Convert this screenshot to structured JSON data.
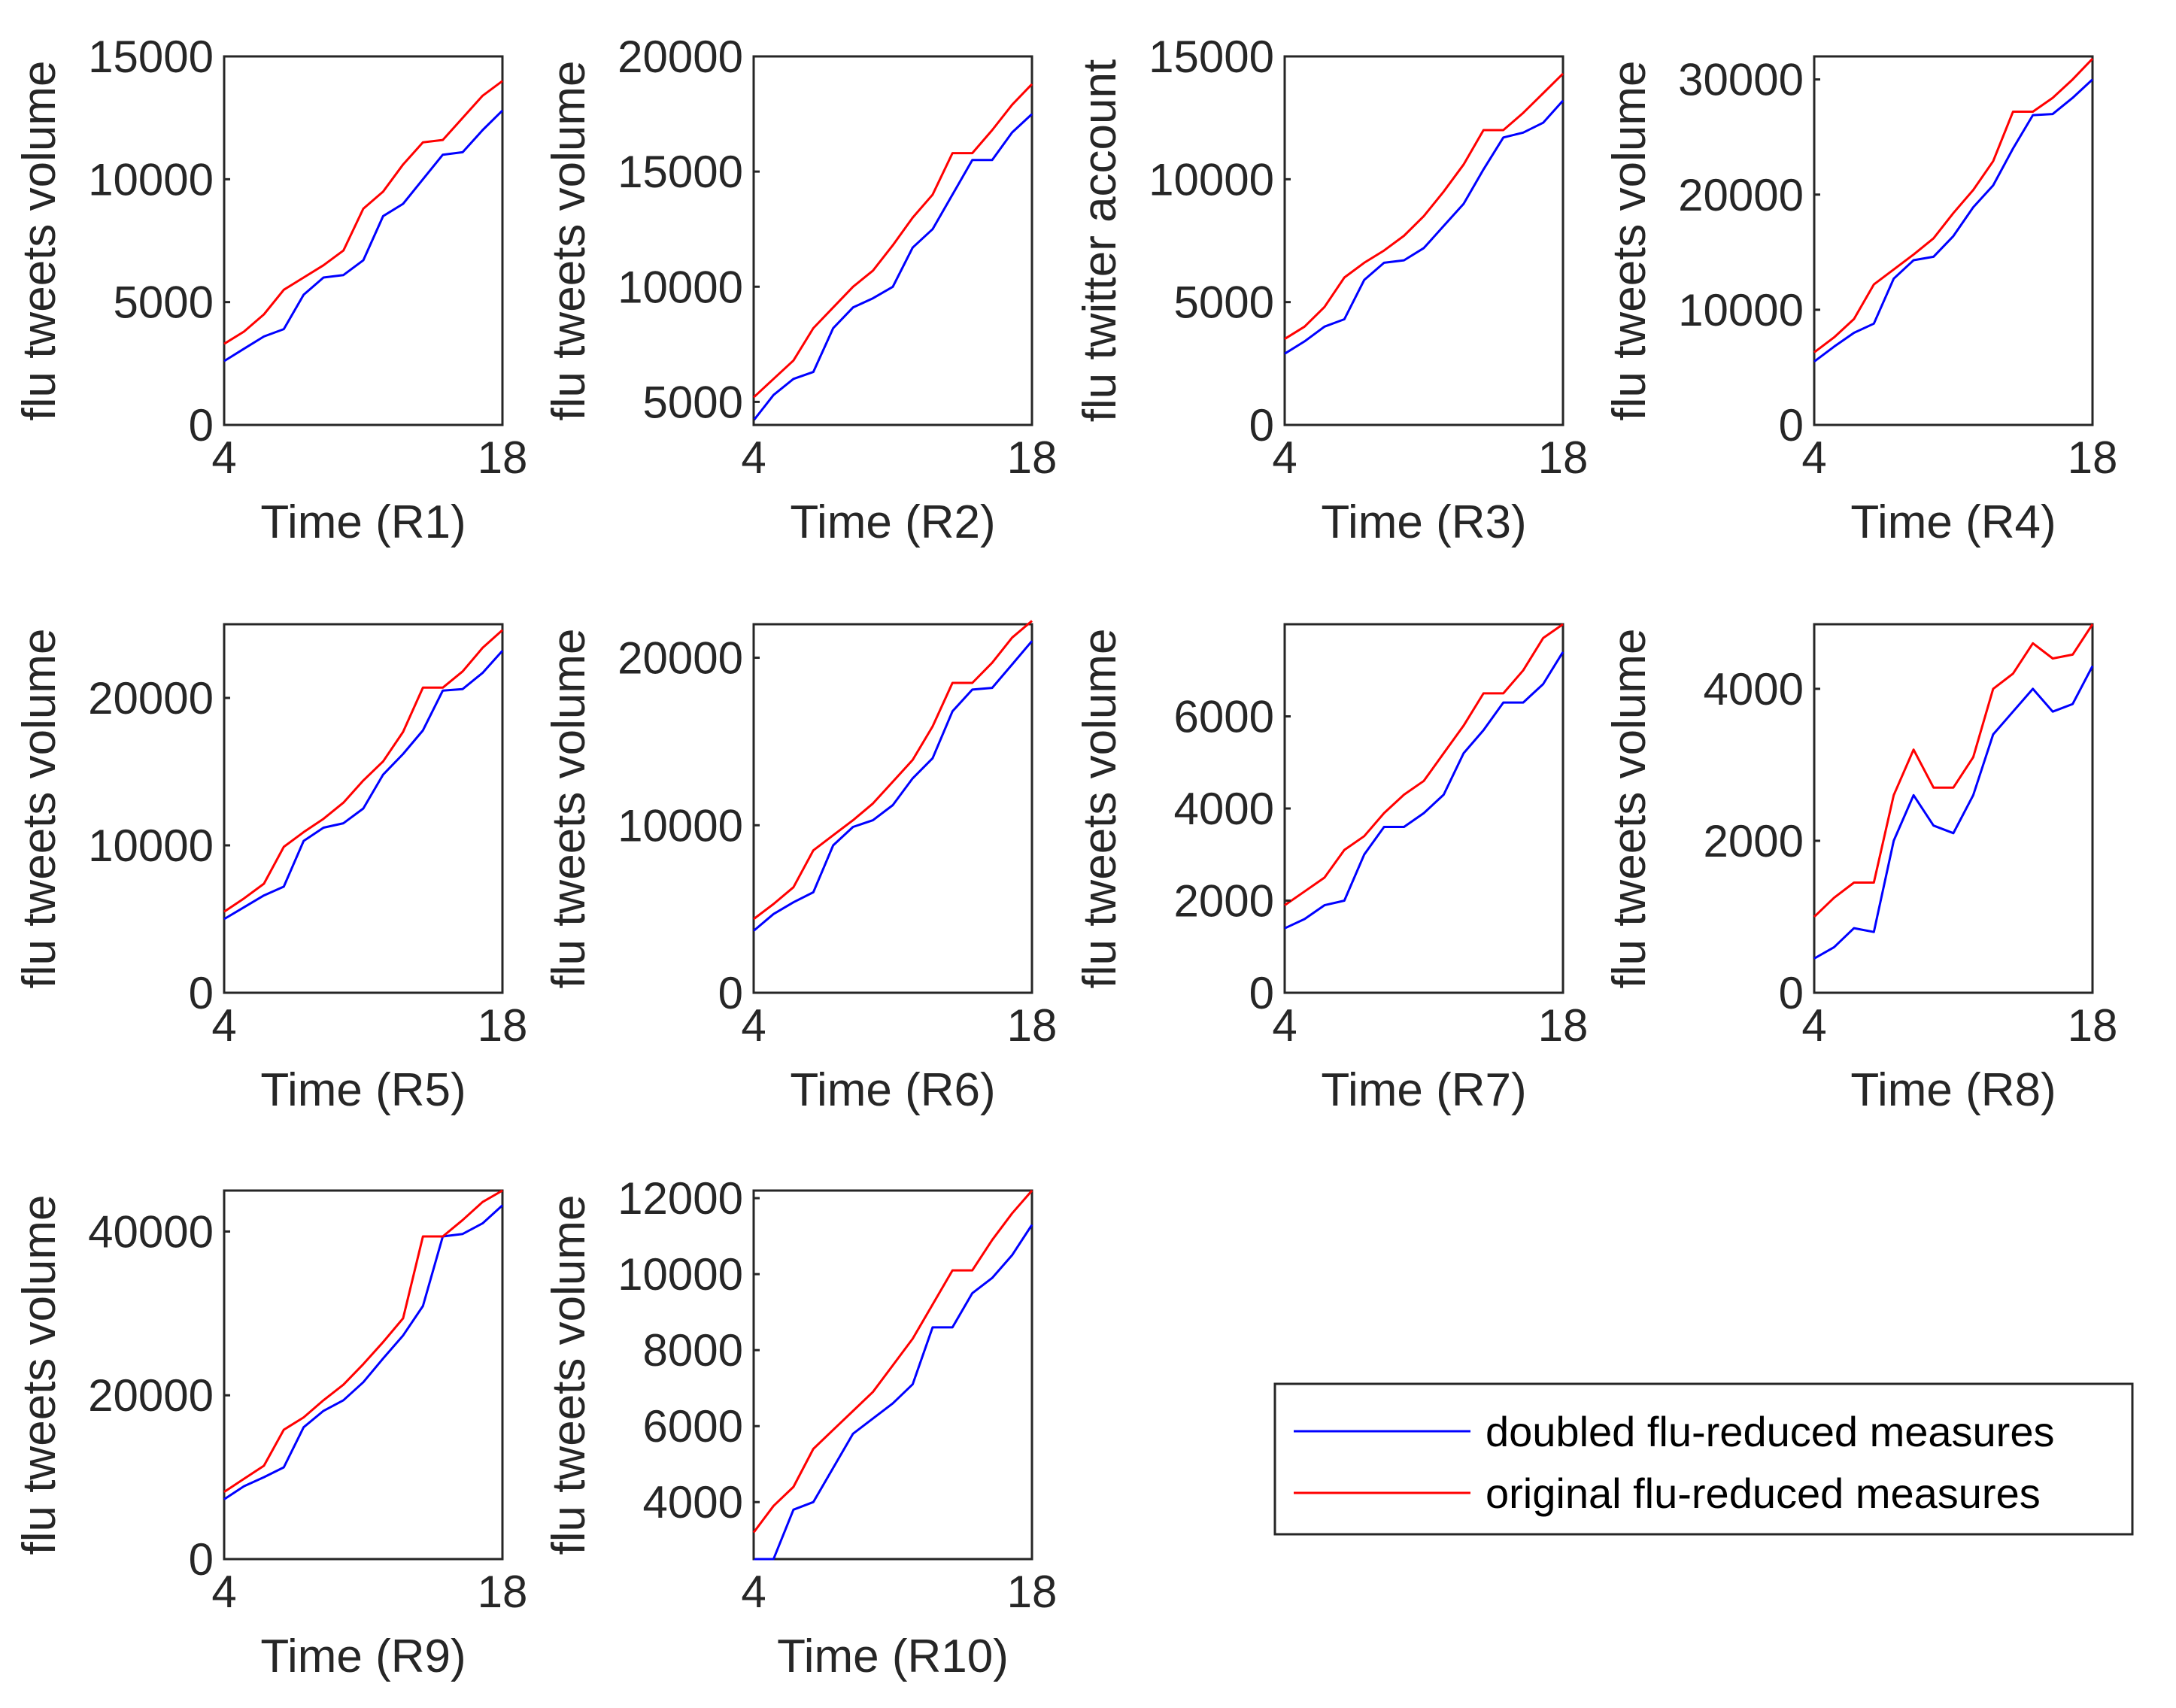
{
  "chart_data": [
    {
      "type": "line",
      "panel": "R1",
      "xlabel": "Time (R1)",
      "ylabel": "flu tweets volume",
      "xlim": [
        4,
        18
      ],
      "ylim": [
        0,
        15000
      ],
      "xticks": [
        "4",
        "18"
      ],
      "yticks": [
        "0",
        "5000",
        "10000",
        "15000"
      ],
      "x": [
        4,
        5,
        6,
        7,
        8,
        9,
        10,
        11,
        12,
        13,
        14,
        15,
        16,
        17,
        18
      ],
      "series": [
        {
          "name": "doubled flu-reduced measures",
          "color": "#0000ff",
          "values": [
            2600,
            3100,
            3600,
            3900,
            5300,
            6000,
            6100,
            6700,
            8500,
            9000,
            10000,
            11000,
            11100,
            12000,
            12800
          ]
        },
        {
          "name": "original flu-reduced measures",
          "color": "#ff0000",
          "values": [
            3300,
            3800,
            4500,
            5500,
            6000,
            6500,
            7100,
            8800,
            9500,
            10600,
            11500,
            11600,
            12500,
            13400,
            14000
          ]
        }
      ]
    },
    {
      "type": "line",
      "panel": "R2",
      "xlabel": "Time (R2)",
      "ylabel": "flu tweets volume",
      "xlim": [
        4,
        18
      ],
      "ylim": [
        4000,
        20000
      ],
      "xticks": [
        "4",
        "18"
      ],
      "yticks": [
        "5000",
        "10000",
        "15000",
        "20000"
      ],
      "x": [
        4,
        5,
        6,
        7,
        8,
        9,
        10,
        11,
        12,
        13,
        14,
        15,
        16,
        17,
        18
      ],
      "series": [
        {
          "name": "doubled flu-reduced measures",
          "color": "#0000ff",
          "values": [
            4200,
            5300,
            6000,
            6300,
            8200,
            9100,
            9500,
            10000,
            11700,
            12500,
            14000,
            15500,
            15500,
            16700,
            17500
          ]
        },
        {
          "name": "original flu-reduced measures",
          "color": "#ff0000",
          "values": [
            5200,
            6000,
            6800,
            8200,
            9100,
            10000,
            10700,
            11800,
            13000,
            14000,
            15800,
            15800,
            16800,
            17900,
            18800
          ]
        }
      ]
    },
    {
      "type": "line",
      "panel": "R3",
      "xlabel": "Time (R3)",
      "ylabel": "flu twitter account",
      "xlim": [
        4,
        18
      ],
      "ylim": [
        0,
        15000
      ],
      "xticks": [
        "4",
        "18"
      ],
      "yticks": [
        "0",
        "5000",
        "10000",
        "15000"
      ],
      "x": [
        4,
        5,
        6,
        7,
        8,
        9,
        10,
        11,
        12,
        13,
        14,
        15,
        16,
        17,
        18
      ],
      "series": [
        {
          "name": "doubled flu-reduced measures",
          "color": "#0000ff",
          "values": [
            2900,
            3400,
            4000,
            4300,
            5900,
            6600,
            6700,
            7200,
            8100,
            9000,
            10400,
            11700,
            11900,
            12300,
            13200
          ]
        },
        {
          "name": "original flu-reduced measures",
          "color": "#ff0000",
          "values": [
            3500,
            4000,
            4800,
            6000,
            6600,
            7100,
            7700,
            8500,
            9500,
            10600,
            12000,
            12000,
            12700,
            13500,
            14300
          ]
        }
      ]
    },
    {
      "type": "line",
      "panel": "R4",
      "xlabel": "Time (R4)",
      "ylabel": "flu tweets volume",
      "xlim": [
        4,
        18
      ],
      "ylim": [
        0,
        32000
      ],
      "xticks": [
        "4",
        "18"
      ],
      "yticks": [
        "0",
        "10000",
        "20000",
        "30000"
      ],
      "x": [
        4,
        5,
        6,
        7,
        8,
        9,
        10,
        11,
        12,
        13,
        14,
        15,
        16,
        17,
        18
      ],
      "series": [
        {
          "name": "doubled flu-reduced measures",
          "color": "#0000ff",
          "values": [
            5500,
            6800,
            8000,
            8800,
            12700,
            14300,
            14600,
            16400,
            18900,
            20800,
            24000,
            26900,
            27000,
            28400,
            30000
          ]
        },
        {
          "name": "original flu-reduced measures",
          "color": "#ff0000",
          "values": [
            6300,
            7600,
            9200,
            12200,
            13500,
            14800,
            16200,
            18400,
            20400,
            22900,
            27200,
            27200,
            28400,
            30000,
            31800
          ]
        }
      ]
    },
    {
      "type": "line",
      "panel": "R5",
      "xlabel": "Time (R5)",
      "ylabel": "flu tweets volume",
      "xlim": [
        4,
        18
      ],
      "ylim": [
        0,
        25000
      ],
      "xticks": [
        "4",
        "18"
      ],
      "yticks": [
        "0",
        "10000",
        "20000"
      ],
      "x": [
        4,
        5,
        6,
        7,
        8,
        9,
        10,
        11,
        12,
        13,
        14,
        15,
        16,
        17,
        18
      ],
      "series": [
        {
          "name": "doubled flu-reduced measures",
          "color": "#0000ff",
          "values": [
            5000,
            5800,
            6600,
            7200,
            10300,
            11200,
            11500,
            12500,
            14800,
            16200,
            17800,
            20500,
            20600,
            21700,
            23200
          ]
        },
        {
          "name": "original flu-reduced measures",
          "color": "#ff0000",
          "values": [
            5500,
            6400,
            7400,
            9900,
            10900,
            11800,
            12900,
            14400,
            15700,
            17700,
            20700,
            20700,
            21800,
            23400,
            24600
          ]
        }
      ]
    },
    {
      "type": "line",
      "panel": "R6",
      "xlabel": "Time (R6)",
      "ylabel": "flu tweets volume",
      "xlim": [
        4,
        18
      ],
      "ylim": [
        0,
        22000
      ],
      "xticks": [
        "4",
        "18"
      ],
      "yticks": [
        "0",
        "10000",
        "20000"
      ],
      "x": [
        4,
        5,
        6,
        7,
        8,
        9,
        10,
        11,
        12,
        13,
        14,
        15,
        16,
        17,
        18
      ],
      "series": [
        {
          "name": "doubled flu-reduced measures",
          "color": "#0000ff",
          "values": [
            3700,
            4700,
            5400,
            6000,
            8800,
            9900,
            10300,
            11200,
            12800,
            14000,
            16800,
            18100,
            18200,
            19600,
            21000
          ]
        },
        {
          "name": "original flu-reduced measures",
          "color": "#ff0000",
          "values": [
            4400,
            5300,
            6300,
            8500,
            9400,
            10300,
            11300,
            12600,
            13900,
            15900,
            18500,
            18500,
            19700,
            21200,
            22200
          ]
        }
      ]
    },
    {
      "type": "line",
      "panel": "R7",
      "xlabel": "Time (R7)",
      "ylabel": "flu tweets volume",
      "xlim": [
        4,
        18
      ],
      "ylim": [
        0,
        8000
      ],
      "xticks": [
        "4",
        "18"
      ],
      "yticks": [
        "0",
        "2000",
        "4000",
        "6000"
      ],
      "x": [
        4,
        5,
        6,
        7,
        8,
        9,
        10,
        11,
        12,
        13,
        14,
        15,
        16,
        17,
        18
      ],
      "series": [
        {
          "name": "doubled flu-reduced measures",
          "color": "#0000ff",
          "values": [
            1400,
            1600,
            1900,
            2000,
            3000,
            3600,
            3600,
            3900,
            4300,
            5200,
            5700,
            6300,
            6300,
            6700,
            7400
          ]
        },
        {
          "name": "original flu-reduced measures",
          "color": "#ff0000",
          "values": [
            1900,
            2200,
            2500,
            3100,
            3400,
            3900,
            4300,
            4600,
            5200,
            5800,
            6500,
            6500,
            7000,
            7700,
            8000
          ]
        }
      ]
    },
    {
      "type": "line",
      "panel": "R8",
      "xlabel": "Time (R8)",
      "ylabel": "flu tweets volume",
      "xlim": [
        4,
        18
      ],
      "ylim": [
        0,
        4850
      ],
      "xticks": [
        "4",
        "18"
      ],
      "yticks": [
        "0",
        "2000",
        "4000"
      ],
      "x": [
        4,
        5,
        6,
        7,
        8,
        9,
        10,
        11,
        12,
        13,
        14,
        15,
        16,
        17,
        18
      ],
      "series": [
        {
          "name": "doubled flu-reduced measures",
          "color": "#0000ff",
          "values": [
            450,
            600,
            850,
            800,
            2000,
            2600,
            2200,
            2100,
            2600,
            3400,
            3700,
            4000,
            3700,
            3800,
            4300
          ]
        },
        {
          "name": "original flu-reduced measures",
          "color": "#ff0000",
          "values": [
            1000,
            1250,
            1450,
            1450,
            2600,
            3200,
            2700,
            2700,
            3100,
            4000,
            4200,
            4600,
            4400,
            4450,
            4850
          ]
        }
      ]
    },
    {
      "type": "line",
      "panel": "R9",
      "xlabel": "Time (R9)",
      "ylabel": "flu tweets volume",
      "xlim": [
        4,
        18
      ],
      "ylim": [
        0,
        45000
      ],
      "xticks": [
        "4",
        "18"
      ],
      "yticks": [
        "0",
        "20000",
        "40000"
      ],
      "x": [
        4,
        5,
        6,
        7,
        8,
        9,
        10,
        11,
        12,
        13,
        14,
        15,
        16,
        17,
        18
      ],
      "series": [
        {
          "name": "doubled flu-reduced measures",
          "color": "#0000ff",
          "values": [
            7300,
            8900,
            10000,
            11200,
            16100,
            18100,
            19400,
            21600,
            24500,
            27300,
            30900,
            39400,
            39700,
            41000,
            43200
          ]
        },
        {
          "name": "original flu-reduced measures",
          "color": "#ff0000",
          "values": [
            8200,
            9800,
            11400,
            15800,
            17300,
            19400,
            21300,
            23800,
            26500,
            29400,
            39400,
            39400,
            41400,
            43600,
            45000
          ]
        }
      ]
    },
    {
      "type": "line",
      "panel": "R10",
      "xlabel": "Time (R10)",
      "ylabel": "flu tweets volume",
      "xlim": [
        4,
        18
      ],
      "ylim": [
        2500,
        12200
      ],
      "xticks": [
        "4",
        "18"
      ],
      "yticks": [
        "4000",
        "6000",
        "8000",
        "10000",
        "12000"
      ],
      "x": [
        4,
        5,
        6,
        7,
        8,
        9,
        10,
        11,
        12,
        13,
        14,
        15,
        16,
        17,
        18
      ],
      "series": [
        {
          "name": "doubled flu-reduced measures",
          "color": "#0000ff",
          "values": [
            2500,
            2500,
            3800,
            4000,
            4900,
            5800,
            6200,
            6600,
            7100,
            8600,
            8600,
            9500,
            9900,
            10500,
            11300
          ]
        },
        {
          "name": "original flu-reduced measures",
          "color": "#ff0000",
          "values": [
            3200,
            3900,
            4400,
            5400,
            5900,
            6400,
            6900,
            7600,
            8300,
            9200,
            10100,
            10100,
            10900,
            11600,
            12200
          ]
        }
      ]
    }
  ],
  "legend": {
    "placement": "bottom-right",
    "items": [
      {
        "label": "doubled flu-reduced measures",
        "color": "#0000ff"
      },
      {
        "label": "original flu-reduced measures",
        "color": "#ff0000"
      }
    ]
  }
}
